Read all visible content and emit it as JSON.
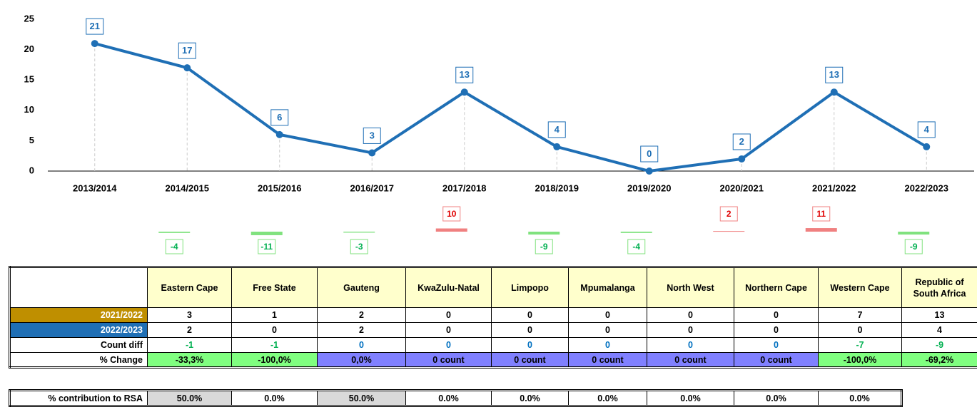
{
  "chart_data": {
    "type": "line",
    "categories": [
      "2013/2014",
      "2014/2015",
      "2015/2016",
      "2016/2017",
      "2017/2018",
      "2018/2019",
      "2019/2020",
      "2020/2021",
      "2021/2022",
      "2022/2023"
    ],
    "values": [
      21,
      17,
      6,
      3,
      13,
      4,
      0,
      2,
      13,
      4
    ],
    "color": "#1f6fb5",
    "ylim": [
      0,
      25
    ],
    "yticks": [
      0,
      5,
      10,
      15,
      20,
      25
    ]
  },
  "change": {
    "values": [
      -4,
      -11,
      -3,
      10,
      -9,
      -4,
      2,
      11,
      -9
    ],
    "down_color": "#80e27e",
    "up_color": "#f08080"
  },
  "table": {
    "columns": [
      "Eastern Cape",
      "Free State",
      "Gauteng",
      "KwaZulu-Natal",
      "Limpopo",
      "Mpumalanga",
      "North West",
      "Northern Cape",
      "Western Cape",
      "Republic of South Africa"
    ],
    "rows": [
      {
        "label": "2021/2022",
        "fill": "#bf8f00",
        "cells": [
          3,
          1,
          2,
          0,
          0,
          0,
          0,
          0,
          7,
          13
        ]
      },
      {
        "label": "2022/2023",
        "fill": "#1f6fb5",
        "cells": [
          2,
          0,
          2,
          0,
          0,
          0,
          0,
          0,
          0,
          4
        ]
      },
      {
        "label": "Count diff",
        "cells": [
          -1,
          -1,
          0,
          0,
          0,
          0,
          0,
          0,
          -7,
          -9
        ]
      },
      {
        "label": "% Change",
        "cells": [
          "-33,3%",
          "-100,0%",
          "0,0%",
          "0 count",
          "0 count",
          "0 count",
          "0 count",
          "0 count",
          "-100,0%",
          "-69,2%"
        ]
      }
    ]
  },
  "contribution": {
    "label": "% contribution to RSA",
    "cells": [
      "50.0%",
      "0.0%",
      "50.0%",
      "0.0%",
      "0.0%",
      "0.0%",
      "0.0%",
      "0.0%",
      "0.0%"
    ]
  }
}
